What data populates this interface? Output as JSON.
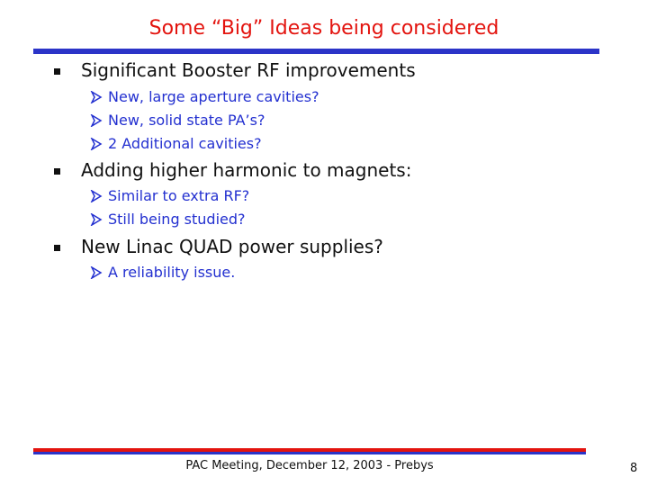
{
  "slide": {
    "title": "Some “Big” Ideas being considered",
    "bullets": [
      {
        "text": "Significant Booster RF improvements",
        "subitems": [
          "New, large aperture cavities?",
          "New, solid state PA’s?",
          "2 Additional cavities?"
        ]
      },
      {
        "text": "Adding higher harmonic to magnets:",
        "subitems": [
          "Similar to extra RF?",
          "Still being studied?"
        ]
      },
      {
        "text": "New Linac QUAD power supplies?",
        "subitems": [
          "A reliability issue."
        ]
      }
    ]
  },
  "footer": {
    "text": "PAC Meeting, December 12, 2003 - Prebys",
    "page_number": "8"
  },
  "colors": {
    "title": "#e3140f",
    "subitem": "#2330d0",
    "rule_blue": "#2b34c8",
    "rule_red": "#e3140f"
  }
}
